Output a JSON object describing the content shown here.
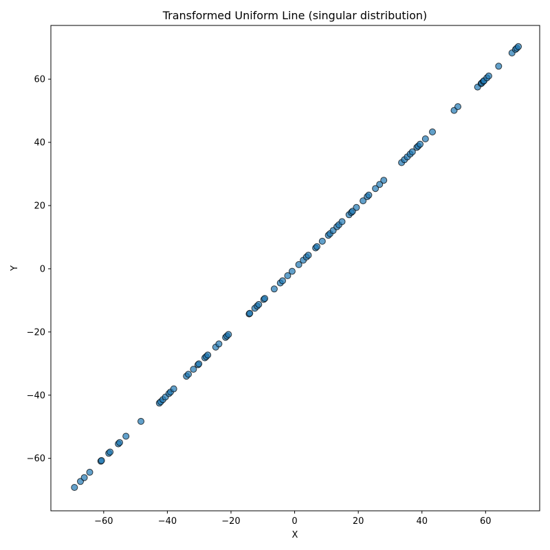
{
  "chart_data": {
    "type": "scatter",
    "title": "Transformed Uniform Line  (singular distribution)",
    "xlabel": "X",
    "ylabel": "Y",
    "xlim": [
      -76.6,
      77.0
    ],
    "ylim": [
      -76.6,
      77.0
    ],
    "xticks": [
      -60,
      -40,
      -20,
      0,
      20,
      40,
      60
    ],
    "yticks": [
      -60,
      -40,
      -20,
      0,
      20,
      40,
      60
    ],
    "xtick_labels": [
      "−60",
      "−40",
      "−20",
      "0",
      "20",
      "40",
      "60"
    ],
    "ytick_labels": [
      "−60",
      "−40",
      "−20",
      "0",
      "20",
      "40",
      "60"
    ],
    "grid": false,
    "marker_color": "#1f77b4",
    "marker_edge_color": "#000000",
    "points": [
      [
        -69.2,
        -69.2
      ],
      [
        -67.3,
        -67.3
      ],
      [
        -66.1,
        -66.1
      ],
      [
        -64.4,
        -64.4
      ],
      [
        -60.9,
        -60.9
      ],
      [
        -60.7,
        -60.7
      ],
      [
        -58.4,
        -58.4
      ],
      [
        -58.0,
        -58.0
      ],
      [
        -55.4,
        -55.4
      ],
      [
        -55.0,
        -55.0
      ],
      [
        -53.0,
        -53.0
      ],
      [
        -48.3,
        -48.3
      ],
      [
        -42.5,
        -42.5
      ],
      [
        -42.1,
        -42.1
      ],
      [
        -41.4,
        -41.4
      ],
      [
        -40.6,
        -40.6
      ],
      [
        -39.5,
        -39.5
      ],
      [
        -39.0,
        -39.0
      ],
      [
        -38.0,
        -38.0
      ],
      [
        -34.0,
        -34.0
      ],
      [
        -33.4,
        -33.4
      ],
      [
        -31.8,
        -31.8
      ],
      [
        -30.4,
        -30.4
      ],
      [
        -30.1,
        -30.1
      ],
      [
        -28.2,
        -28.2
      ],
      [
        -27.8,
        -27.8
      ],
      [
        -27.3,
        -27.3
      ],
      [
        -24.8,
        -24.8
      ],
      [
        -23.8,
        -23.8
      ],
      [
        -21.7,
        -21.7
      ],
      [
        -21.3,
        -21.3
      ],
      [
        -20.8,
        -20.8
      ],
      [
        -14.3,
        -14.3
      ],
      [
        -14.1,
        -14.1
      ],
      [
        -12.5,
        -12.5
      ],
      [
        -11.8,
        -11.8
      ],
      [
        -11.3,
        -11.3
      ],
      [
        -9.7,
        -9.7
      ],
      [
        -9.4,
        -9.4
      ],
      [
        -6.4,
        -6.4
      ],
      [
        -4.5,
        -4.5
      ],
      [
        -3.8,
        -3.8
      ],
      [
        -2.2,
        -2.2
      ],
      [
        -0.8,
        -0.8
      ],
      [
        1.3,
        1.3
      ],
      [
        2.7,
        2.7
      ],
      [
        3.7,
        3.7
      ],
      [
        4.3,
        4.3
      ],
      [
        6.6,
        6.6
      ],
      [
        7.0,
        7.0
      ],
      [
        8.7,
        8.7
      ],
      [
        10.6,
        10.6
      ],
      [
        11.1,
        11.1
      ],
      [
        12.1,
        12.1
      ],
      [
        13.3,
        13.3
      ],
      [
        13.9,
        13.9
      ],
      [
        14.9,
        14.9
      ],
      [
        17.1,
        17.1
      ],
      [
        17.8,
        17.8
      ],
      [
        18.2,
        18.2
      ],
      [
        19.4,
        19.4
      ],
      [
        21.5,
        21.5
      ],
      [
        22.8,
        22.8
      ],
      [
        23.3,
        23.3
      ],
      [
        25.4,
        25.4
      ],
      [
        26.7,
        26.7
      ],
      [
        28.0,
        28.0
      ],
      [
        33.6,
        33.6
      ],
      [
        34.5,
        34.5
      ],
      [
        35.4,
        35.4
      ],
      [
        36.3,
        36.3
      ],
      [
        37.0,
        37.0
      ],
      [
        38.4,
        38.4
      ],
      [
        38.8,
        38.8
      ],
      [
        39.4,
        39.4
      ],
      [
        41.1,
        41.1
      ],
      [
        43.3,
        43.3
      ],
      [
        50.1,
        50.1
      ],
      [
        51.3,
        51.3
      ],
      [
        57.5,
        57.5
      ],
      [
        58.6,
        58.6
      ],
      [
        58.8,
        58.8
      ],
      [
        59.3,
        59.3
      ],
      [
        59.5,
        59.5
      ],
      [
        60.4,
        60.4
      ],
      [
        61.0,
        61.0
      ],
      [
        64.1,
        64.1
      ],
      [
        68.3,
        68.3
      ],
      [
        69.4,
        69.4
      ],
      [
        69.8,
        69.8
      ],
      [
        70.3,
        70.3
      ]
    ]
  }
}
